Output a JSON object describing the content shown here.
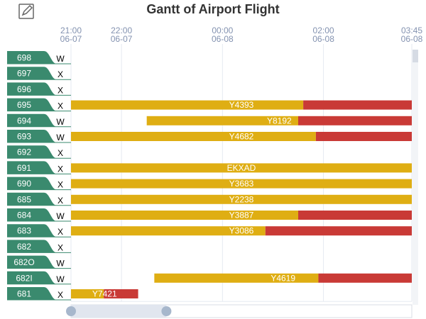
{
  "toolbar": {
    "edit_icon": "edit-icon"
  },
  "chart_data": {
    "type": "gantt",
    "title": "Gantt of Airport Flight",
    "x_ticks": [
      {
        "time": "21:00",
        "date": "06-07",
        "hours": 0
      },
      {
        "time": "22:00",
        "date": "06-07",
        "hours": 1
      },
      {
        "time": "00:00",
        "date": "06-08",
        "hours": 3
      },
      {
        "time": "02:00",
        "date": "06-08",
        "hours": 5
      },
      {
        "time": "03:45",
        "date": "06-08",
        "hours": 6.75
      }
    ],
    "x_range_hours": [
      0,
      6.75
    ],
    "x_axis_origin": "06-07 21:00",
    "gates": [
      {
        "gate": "698",
        "type": "W"
      },
      {
        "gate": "697",
        "type": "X"
      },
      {
        "gate": "696",
        "type": "X"
      },
      {
        "gate": "695",
        "type": "X"
      },
      {
        "gate": "694",
        "type": "W"
      },
      {
        "gate": "693",
        "type": "W"
      },
      {
        "gate": "692",
        "type": "X"
      },
      {
        "gate": "691",
        "type": "X"
      },
      {
        "gate": "690",
        "type": "X"
      },
      {
        "gate": "685",
        "type": "X"
      },
      {
        "gate": "684",
        "type": "W"
      },
      {
        "gate": "683",
        "type": "X"
      },
      {
        "gate": "682",
        "type": "X"
      },
      {
        "gate": "682O",
        "type": "W"
      },
      {
        "gate": "682I",
        "type": "W"
      },
      {
        "gate": "681",
        "type": "X"
      }
    ],
    "flights": [
      {
        "gate": "695",
        "flight": "Y4393",
        "start": 0,
        "split": 4.6,
        "end": 6.75
      },
      {
        "gate": "694",
        "flight": "Y8192",
        "start": 1.5,
        "split": 4.5,
        "end": 6.75
      },
      {
        "gate": "693",
        "flight": "Y4682",
        "start": 0,
        "split": 4.85,
        "end": 6.75
      },
      {
        "gate": "691",
        "flight": "EKXAD",
        "start": 0,
        "split": 6.75,
        "end": 6.75
      },
      {
        "gate": "690",
        "flight": "Y3683",
        "start": 0,
        "split": 6.75,
        "end": 6.75
      },
      {
        "gate": "685",
        "flight": "Y2238",
        "start": 0,
        "split": 6.75,
        "end": 6.75
      },
      {
        "gate": "684",
        "flight": "Y3887",
        "start": 0,
        "split": 4.5,
        "end": 6.75
      },
      {
        "gate": "683",
        "flight": "Y3086",
        "start": 0,
        "split": 3.85,
        "end": 6.75
      },
      {
        "gate": "682I",
        "flight": "Y4619",
        "start": 1.65,
        "split": 4.9,
        "end": 6.75
      },
      {
        "gate": "681",
        "flight": "Y7421",
        "start": 0,
        "split": 0.65,
        "end": 1.33
      }
    ],
    "colors": {
      "gate_badge": "#3a8a6e",
      "bar_primary": "#dfae13",
      "bar_secondary": "#c93a36",
      "grid": "#e6eaf1",
      "axis_text": "#8392b0"
    },
    "data_zoom": {
      "start": 0,
      "end": 0.28
    }
  }
}
